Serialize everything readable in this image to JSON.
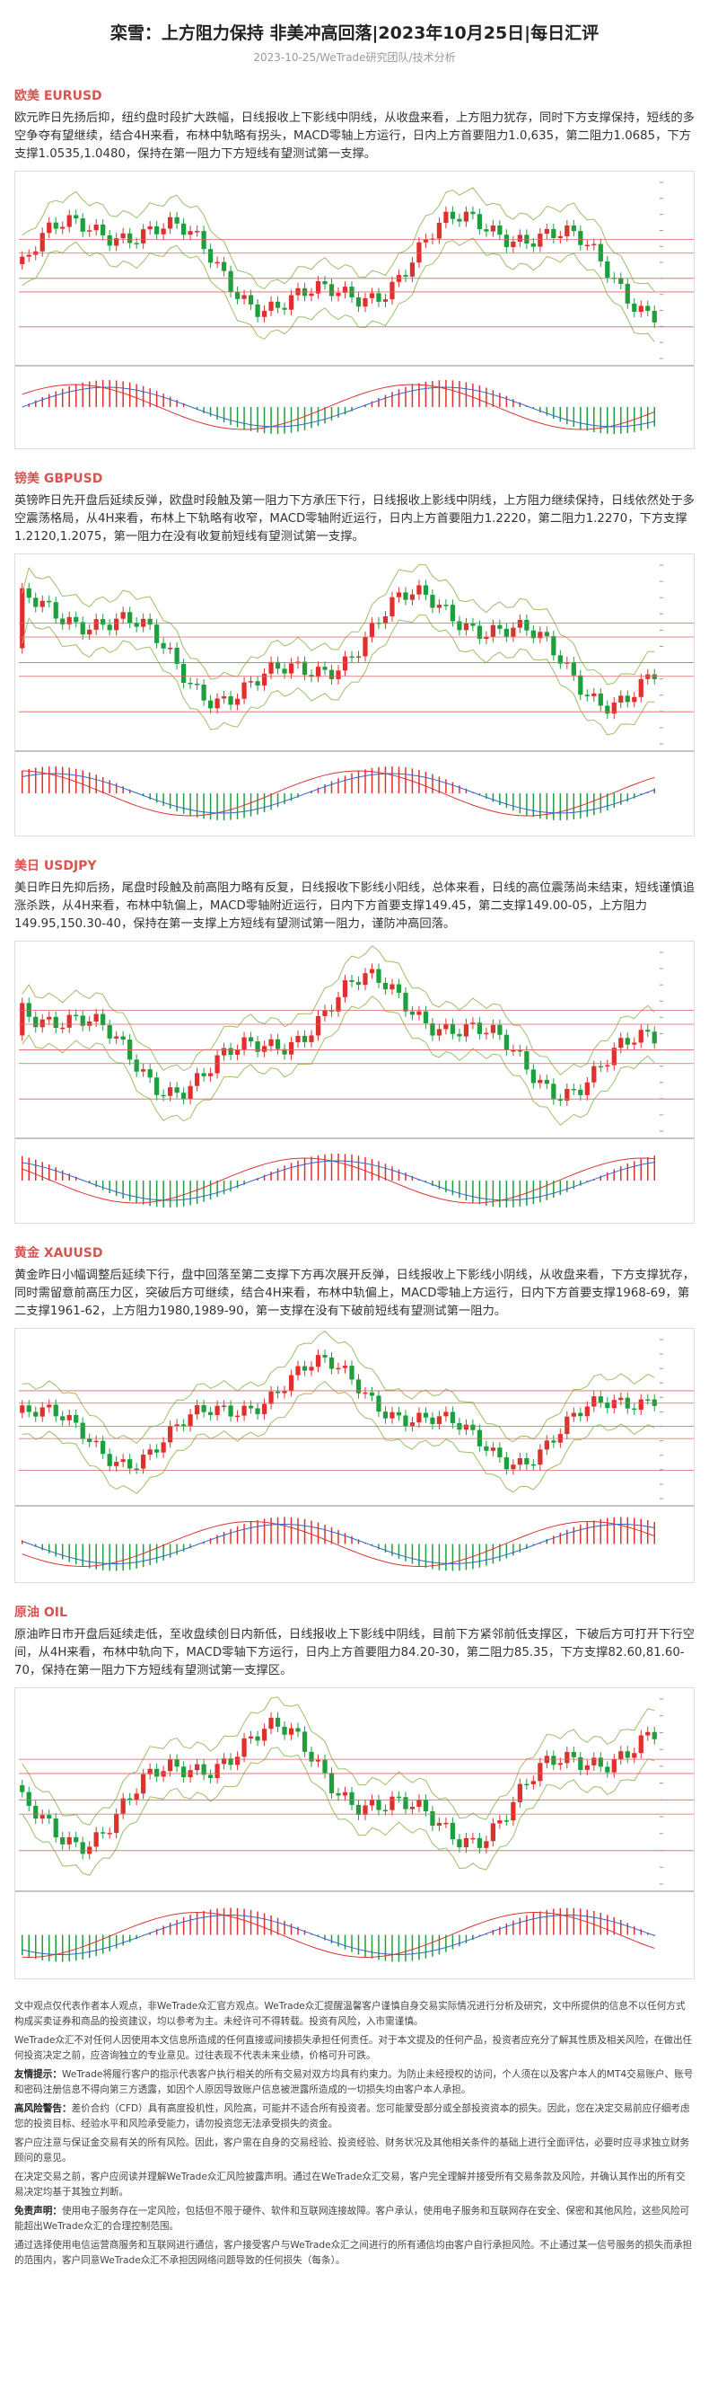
{
  "header": {
    "title": "栾雪：上方阻力保持 非美冲高回落|2023年10月25日|每日汇评",
    "subtitle": "2023-10-25/WeTrade研究团队/技术分析"
  },
  "sections": [
    {
      "heading": "欧美 EURUSD",
      "text": "欧元昨日先扬后抑，纽约盘时段扩大跌幅，日线报收上下影线中阴线，从收盘来看，上方阻力犹存，同时下方支撑保持，短线的多空争夺有望继续，结合4H来看，布林中轨略有拐头，MACD零轴上方运行，日内上方首要阻力1.0,635，第二阻力1.0685，下方支撑1.0535,1.0480，保持在第一阻力下方短线有望测试第一支撑。"
    },
    {
      "heading": "镑美 GBPUSD",
      "text": "英镑昨日先开盘后延续反弹，欧盘时段触及第一阻力下方承压下行，日线报收上影线中阴线，上方阻力继续保持，日线依然处于多空震荡格局，从4H来看，布林上下轨略有收窄，MACD零轴附近运行，日内上方首要阻力1.2220，第二阻力1.2270，下方支撑1.2120,1.2075，第一阻力在没有收复前短线有望测试第一支撑。"
    },
    {
      "heading": "美日 USDJPY",
      "text": "美日昨日先抑后扬，尾盘时段触及前高阻力略有反复，日线报收下影线小阳线，总体来看，日线的高位震荡尚未结束，短线谨慎追涨杀跌，从4H来看，布林中轨偏上，MACD零轴附近运行，日内下方首要支撑149.45，第二支撑149.00-05，上方阻力149.95,150.30-40，保持在第一支撑上方短线有望测试第一阻力，谨防冲高回落。"
    },
    {
      "heading": "黄金 XAUUSD",
      "text": "黄金昨日小幅调整后延续下行，盘中回落至第二支撑下方再次展开反弹，日线报收上下影线小阴线，从收盘来看，下方支撑犹存，同时需留意前高压力区，突破后方可继续，结合4H来看，布林中轨偏上，MACD零轴上方运行，日内下方首要支撑1968-69，第二支撑1961-62，上方阻力1980,1989-90，第一支撑在没有下破前短线有望测试第一阻力。"
    },
    {
      "heading": "原油 OIL",
      "text": "原油昨日市开盘后延续走低，至收盘续创日内新低，日线报收上下影线中阴线，目前下方紧邻前低支撑区，下破后方可打开下行空间，从4H来看，布林中轨向下，MACD零轴下方运行，日内上方首要阻力84.20-30，第二阻力85.35，下方支撑82.60,81.60-70，保持在第一阻力下方短线有望测试第一支撑区。"
    }
  ],
  "disclaimer": [
    {
      "text": "文中观点仅代表作者本人观点，非WeTrade众汇官方观点。WeTrade众汇提醒温馨客户谨慎自身交易实际情况进行分析及研究，文中所提供的信息不以任何方式构成买卖证券和商品的投资建议，均以参考为主。未经许可不得转载。投资有风险，入市需谨慎。"
    },
    {
      "text": "WeTrade众汇不对任何人因使用本文信息所造成的任何直接或间接损失承担任何责任。对于本文提及的任何产品，投资者应充分了解其性质及相关风险，在做出任何投资决定之前，应咨询独立的专业意见。过往表现不代表未来业绩，价格可升可跌。"
    },
    {
      "label": "友情提示：",
      "text": "WeTrade将履行客户的指示代表客户执行相关的所有交易对双方均具有约束力。为防止未经授权的访问，个人须在以及客户本人的MT4交易账户、账号和密码注册信息不得向第三方透露，如因个人原因导致账户信息被泄露所造成的一切损失均由客户本人承担。"
    },
    {
      "label": "高风险警告：",
      "text": "差价合约（CFD）具有高度投机性，风险高，可能并不适合所有投资者。您可能蒙受部分或全部投资资本的损失。因此，您在决定交易前应仔细考虑您的投资目标、经验水平和风险承受能力，请勿投资您无法承受损失的资金。"
    },
    {
      "text": "客户应注意与保证金交易有关的所有风险。因此，客户需在自身的交易经验、投资经验、财务状况及其他相关条件的基础上进行全面评估，必要时应寻求独立财务顾问的意见。"
    },
    {
      "text": "在决定交易之前，客户应阅读并理解WeTrade众汇风险披露声明。通过在WeTrade众汇交易，客户完全理解并接受所有交易条款及风险，并确认其作出的所有交易决定均基于其独立判断。"
    },
    {
      "label": "免责声明：",
      "text": "使用电子服务存在一定风险，包括但不限于硬件、软件和互联网连接故障。客户承认，使用电子服务和互联网存在安全、保密和其他风险，这些风险可能超出WeTrade众汇的合理控制范围。"
    },
    {
      "text": "通过选择使用电信运营商服务和互联网进行通信，客户接受客户与WeTrade众汇之间进行的所有通信均由客户自行承担风险。不止通过某一信号服务的损失而承担的范围内，客户同意WeTrade众汇不承担因网络问题导致的任何损失（每条）。"
    }
  ]
}
